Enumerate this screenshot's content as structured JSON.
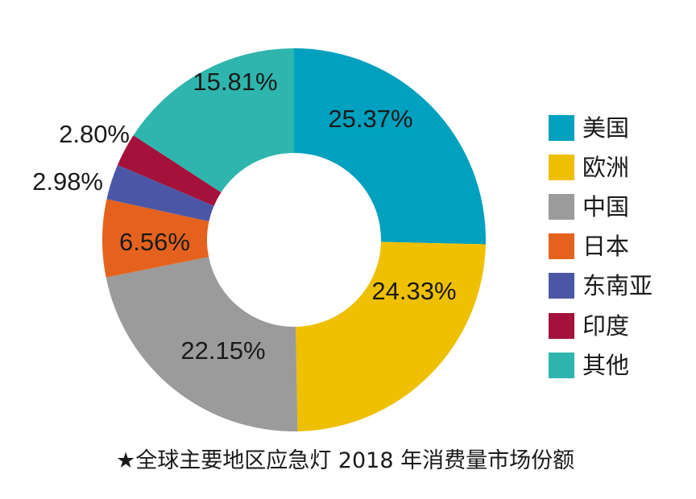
{
  "chart_data": {
    "type": "pie",
    "variant": "donut",
    "categories": [
      "美国",
      "欧洲",
      "中国",
      "日本",
      "东南亚",
      "印度",
      "其他"
    ],
    "values": [
      25.37,
      24.33,
      22.15,
      6.56,
      2.98,
      2.8,
      15.81
    ],
    "labels": [
      "25.37%",
      "24.33%",
      "22.15%",
      "6.56%",
      "2.98%",
      "2.80%",
      "15.81%"
    ],
    "colors": [
      "#00a0bf",
      "#eec000",
      "#9b9b9b",
      "#e5621e",
      "#4b57a6",
      "#a4113a",
      "#2eb5ad"
    ],
    "legend_position": "right",
    "start_angle": "12 o'clock, clockwise"
  },
  "caption": "★全球主要地区应急灯 2018 年消费量市场份额"
}
